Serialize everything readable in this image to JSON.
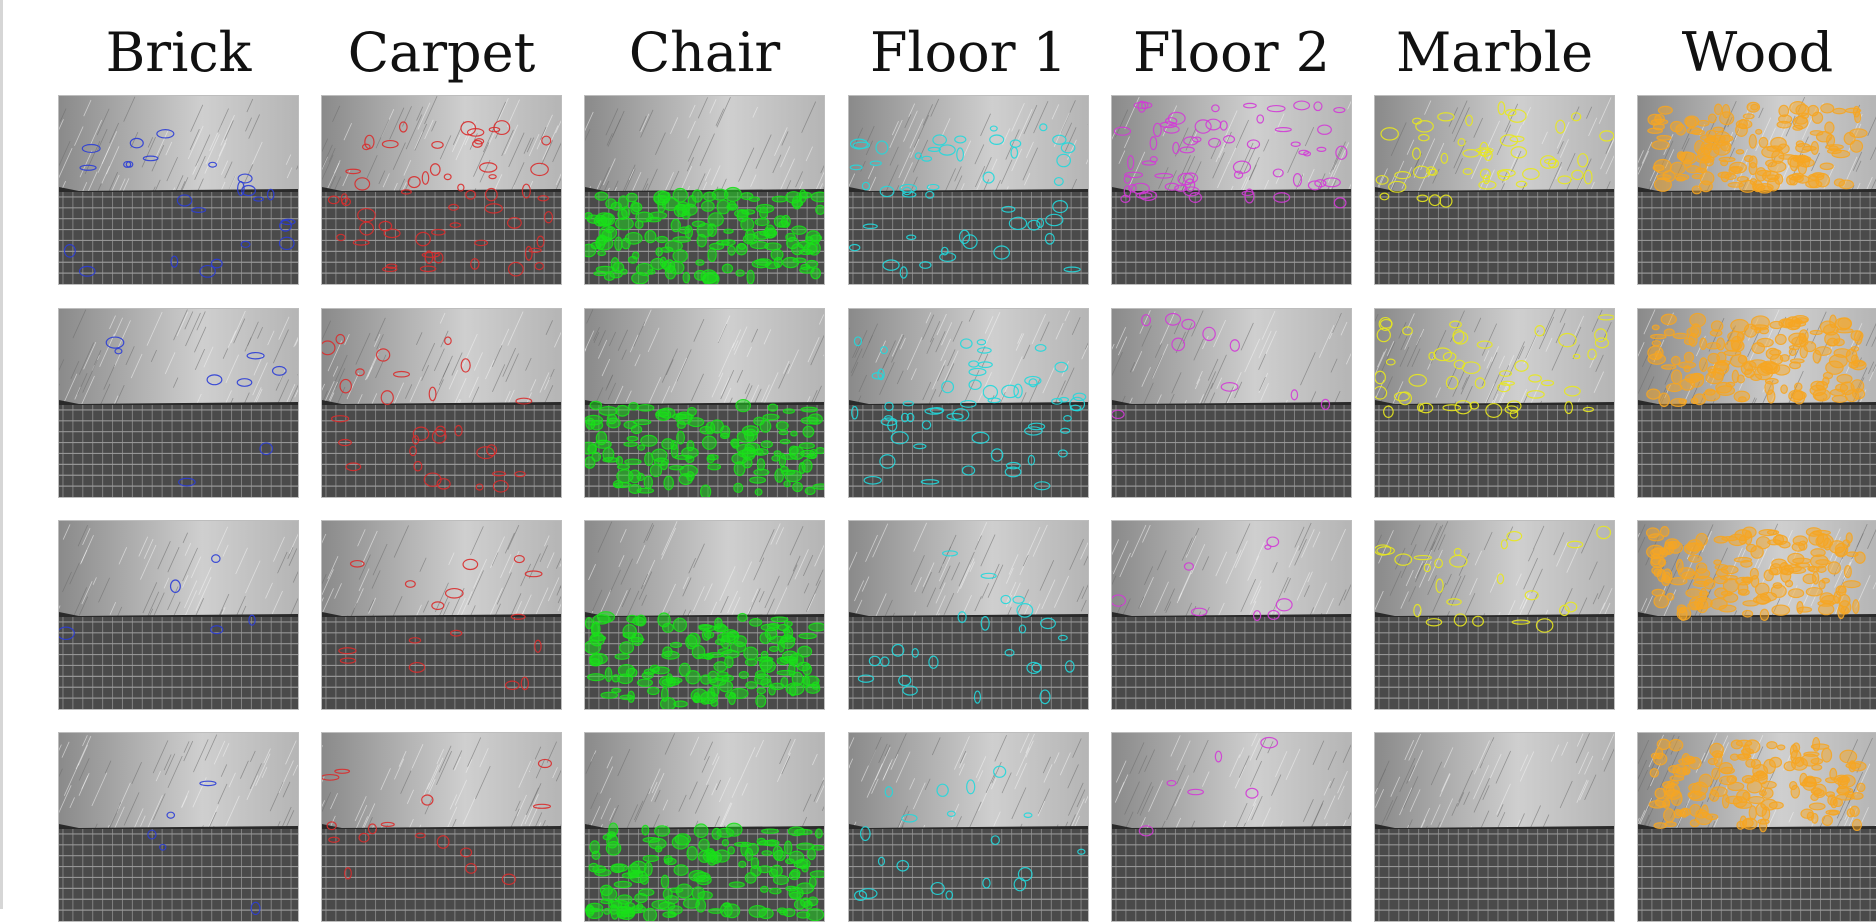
{
  "figure": {
    "columns": [
      {
        "label": "Brick",
        "marker_color": "#2b3dd6"
      },
      {
        "label": "Carpet",
        "marker_color": "#d92c2c"
      },
      {
        "label": "Chair",
        "marker_color": "#19e019"
      },
      {
        "label": "Floor 1",
        "marker_color": "#22d8dc"
      },
      {
        "label": "Floor 2",
        "marker_color": "#d23bd6"
      },
      {
        "label": "Marble",
        "marker_color": "#e8e81e"
      },
      {
        "label": "Wood",
        "marker_color": "#f6a623"
      }
    ],
    "rows": 4,
    "image_content": {
      "upper_region": "grey diagonal-streak texture",
      "lower_region": "dark grey tiled floor grid"
    }
  }
}
